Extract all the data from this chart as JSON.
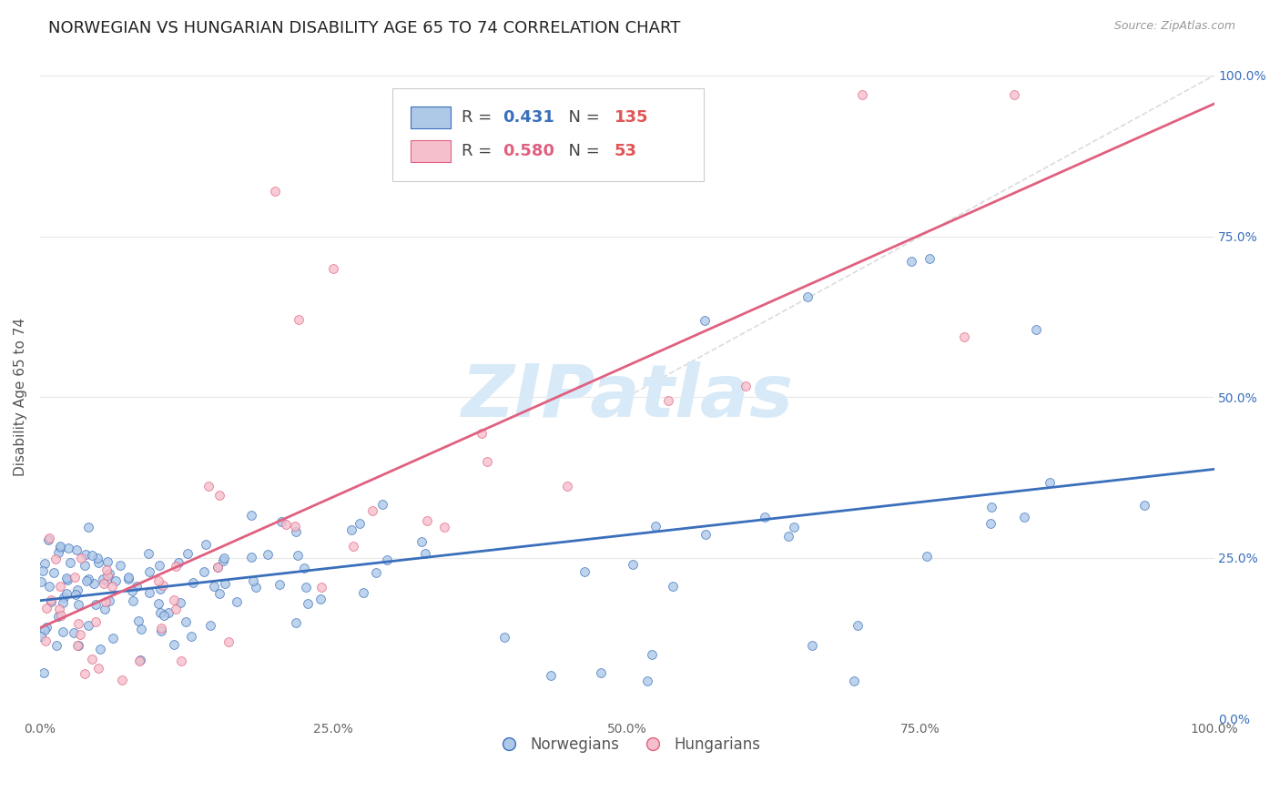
{
  "title": "NORWEGIAN VS HUNGARIAN DISABILITY AGE 65 TO 74 CORRELATION CHART",
  "source": "Source: ZipAtlas.com",
  "ylabel": "Disability Age 65 to 74",
  "xlim": [
    0,
    1
  ],
  "ylim": [
    0,
    1
  ],
  "norwegian_R": 0.431,
  "norwegian_N": 135,
  "hungarian_R": 0.58,
  "hungarian_N": 53,
  "norwegian_color": "#aec8e8",
  "hungarian_color": "#f5c0cc",
  "norwegian_line_color": "#3a6fbc",
  "hungarian_line_color": "#e06080",
  "diagonal_color": "#cccccc",
  "title_fontsize": 13,
  "label_fontsize": 11,
  "tick_fontsize": 10,
  "watermark_text": "ZIPatlas",
  "watermark_color": "#d8eaf8",
  "watermark_fontsize": 58,
  "r_value_color": "#3a6fbc",
  "n_value_color": "#e05555"
}
